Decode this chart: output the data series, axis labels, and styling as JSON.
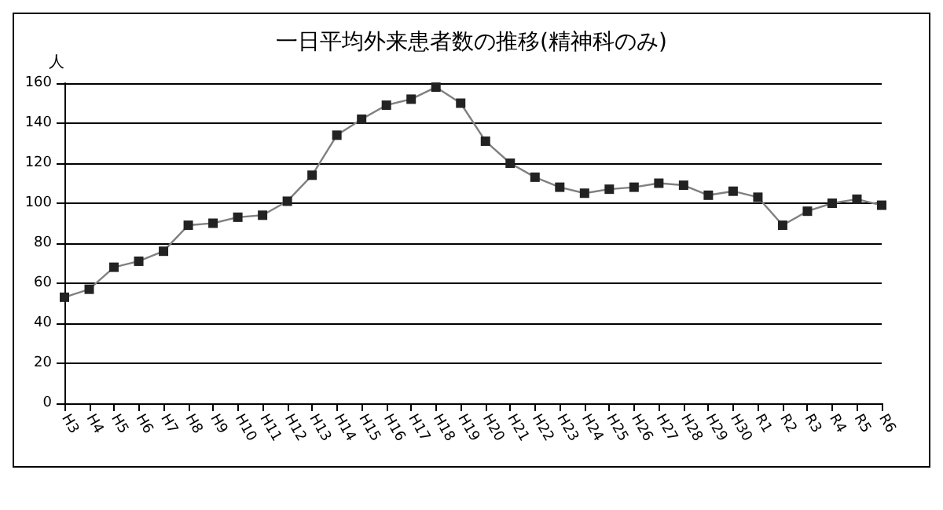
{
  "chart_data": {
    "type": "line",
    "title": "一日平均外来患者数の推移(精神科のみ)",
    "ylabel": "人",
    "categories": [
      "H3",
      "H4",
      "H5",
      "H6",
      "H7",
      "H8",
      "H9",
      "H10",
      "H11",
      "H12",
      "H13",
      "H14",
      "H15",
      "H16",
      "H17",
      "H18",
      "H19",
      "H20",
      "H21",
      "H22",
      "H23",
      "H24",
      "H25",
      "H26",
      "H27",
      "H28",
      "H29",
      "H30",
      "R1",
      "R2",
      "R3",
      "R4",
      "R5",
      "R6"
    ],
    "series": [
      {
        "color": "#808080",
        "values": [
          53,
          57,
          68,
          71,
          76,
          89,
          90,
          93,
          94,
          101,
          114,
          134,
          142,
          149,
          152,
          158,
          150,
          131,
          120,
          113,
          108,
          105,
          107,
          108,
          110,
          109,
          104,
          106,
          103,
          89,
          96,
          100,
          102,
          99
        ]
      }
    ],
    "ylim": [
      0,
      160
    ],
    "yticks": [
      0,
      20,
      40,
      60,
      80,
      100,
      120,
      140,
      160
    ],
    "grid": "y",
    "marker": "square",
    "line_style": "solid"
  }
}
